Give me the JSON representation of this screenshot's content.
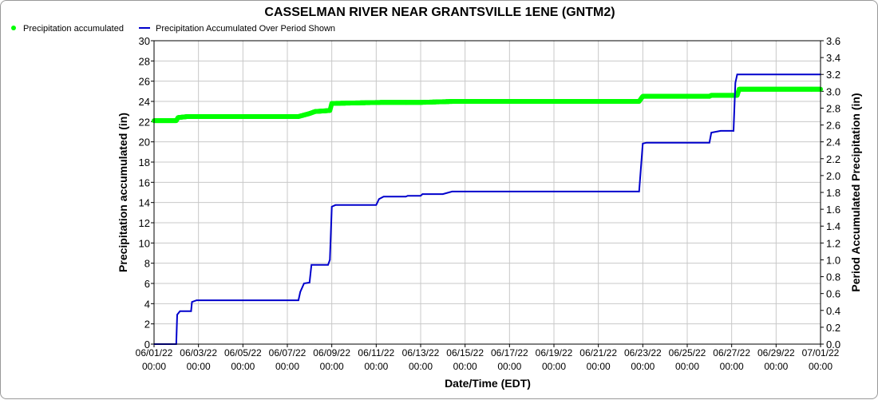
{
  "chart_data": {
    "type": "line",
    "title": "CASSELMAN RIVER NEAR GRANTSVILLE 1ENE (GNTM2)",
    "xlabel": "Date/Time (EDT)",
    "ylabel": "Precipitation accumulated (in)",
    "y2label": "Period Accumulated Precipitation (in)",
    "x_ticks": [
      {
        "d": "06/01/22",
        "t": "00:00"
      },
      {
        "d": "06/03/22",
        "t": "00:00"
      },
      {
        "d": "06/05/22",
        "t": "00:00"
      },
      {
        "d": "06/07/22",
        "t": "00:00"
      },
      {
        "d": "06/09/22",
        "t": "00:00"
      },
      {
        "d": "06/11/22",
        "t": "00:00"
      },
      {
        "d": "06/13/22",
        "t": "00:00"
      },
      {
        "d": "06/15/22",
        "t": "00:00"
      },
      {
        "d": "06/17/22",
        "t": "00:00"
      },
      {
        "d": "06/19/22",
        "t": "00:00"
      },
      {
        "d": "06/21/22",
        "t": "00:00"
      },
      {
        "d": "06/23/22",
        "t": "00:00"
      },
      {
        "d": "06/25/22",
        "t": "00:00"
      },
      {
        "d": "06/27/22",
        "t": "00:00"
      },
      {
        "d": "06/29/22",
        "t": "00:00"
      },
      {
        "d": "07/01/22",
        "t": "00:00"
      }
    ],
    "xlim": [
      "06/01/22 00:00",
      "07/01/22 00:00"
    ],
    "ylim": [
      0,
      30
    ],
    "y_ticks": [
      0,
      2,
      4,
      6,
      8,
      10,
      12,
      14,
      16,
      18,
      20,
      22,
      24,
      26,
      28,
      30
    ],
    "y2lim": [
      0,
      3.6
    ],
    "y2_ticks": [
      "0.0",
      "0.2",
      "0.4",
      "0.6",
      "0.8",
      "1.0",
      "1.2",
      "1.4",
      "1.6",
      "1.8",
      "2.0",
      "2.2",
      "2.4",
      "2.6",
      "2.8",
      "3.0",
      "3.2",
      "3.4",
      "3.6"
    ],
    "grid": true,
    "legend_position": "top-left",
    "series": [
      {
        "name": "Precipitation accumulated",
        "axis": "left",
        "color": "#00ff00",
        "style": "points",
        "points": [
          [
            "06/01/22 00:00",
            22.1
          ],
          [
            "06/02/22 00:00",
            22.1
          ],
          [
            "06/02/22 02:00",
            22.4
          ],
          [
            "06/02/22 12:00",
            22.5
          ],
          [
            "06/07/22 12:00",
            22.5
          ],
          [
            "06/08/22 00:00",
            22.8
          ],
          [
            "06/08/22 06:00",
            23.0
          ],
          [
            "06/08/22 22:00",
            23.1
          ],
          [
            "06/09/22 00:00",
            23.8
          ],
          [
            "06/11/22 06:00",
            23.9
          ],
          [
            "06/13/22 00:00",
            23.9
          ],
          [
            "06/14/22 12:00",
            24.0
          ],
          [
            "06/22/22 20:00",
            24.0
          ],
          [
            "06/23/22 00:00",
            24.5
          ],
          [
            "06/26/22 00:00",
            24.5
          ],
          [
            "06/26/22 02:00",
            24.6
          ],
          [
            "06/27/22 06:00",
            24.6
          ],
          [
            "06/27/22 08:00",
            25.2
          ],
          [
            "07/01/22 00:00",
            25.2
          ]
        ]
      },
      {
        "name": "Precipitation Accumulated Over Period Shown",
        "axis": "right",
        "color": "#0000cc",
        "style": "line",
        "points": [
          [
            "06/01/22 00:00",
            0.0
          ],
          [
            "06/02/22 00:00",
            0.0
          ],
          [
            "06/02/22 01:00",
            0.35
          ],
          [
            "06/02/22 04:00",
            0.39
          ],
          [
            "06/02/22 16:00",
            0.39
          ],
          [
            "06/02/22 17:00",
            0.5
          ],
          [
            "06/02/22 22:00",
            0.52
          ],
          [
            "06/07/22 12:00",
            0.52
          ],
          [
            "06/07/22 14:00",
            0.62
          ],
          [
            "06/07/22 18:00",
            0.72
          ],
          [
            "06/08/22 00:00",
            0.73
          ],
          [
            "06/08/22 02:00",
            0.94
          ],
          [
            "06/08/22 20:00",
            0.94
          ],
          [
            "06/08/22 22:00",
            1.0
          ],
          [
            "06/09/22 00:00",
            1.63
          ],
          [
            "06/09/22 04:00",
            1.65
          ],
          [
            "06/11/22 00:00",
            1.65
          ],
          [
            "06/11/22 03:00",
            1.72
          ],
          [
            "06/11/22 08:00",
            1.75
          ],
          [
            "06/12/22 08:00",
            1.75
          ],
          [
            "06/12/22 10:00",
            1.76
          ],
          [
            "06/13/22 00:00",
            1.76
          ],
          [
            "06/13/22 02:00",
            1.78
          ],
          [
            "06/14/22 00:00",
            1.78
          ],
          [
            "06/14/22 10:00",
            1.81
          ],
          [
            "06/22/22 20:00",
            1.81
          ],
          [
            "06/23/22 00:00",
            2.38
          ],
          [
            "06/23/22 04:00",
            2.39
          ],
          [
            "06/26/22 00:00",
            2.39
          ],
          [
            "06/26/22 02:00",
            2.51
          ],
          [
            "06/26/22 12:00",
            2.53
          ],
          [
            "06/27/22 02:00",
            2.53
          ],
          [
            "06/27/22 04:00",
            3.1
          ],
          [
            "06/27/22 06:00",
            3.2
          ],
          [
            "07/01/22 00:00",
            3.2
          ]
        ]
      }
    ]
  }
}
